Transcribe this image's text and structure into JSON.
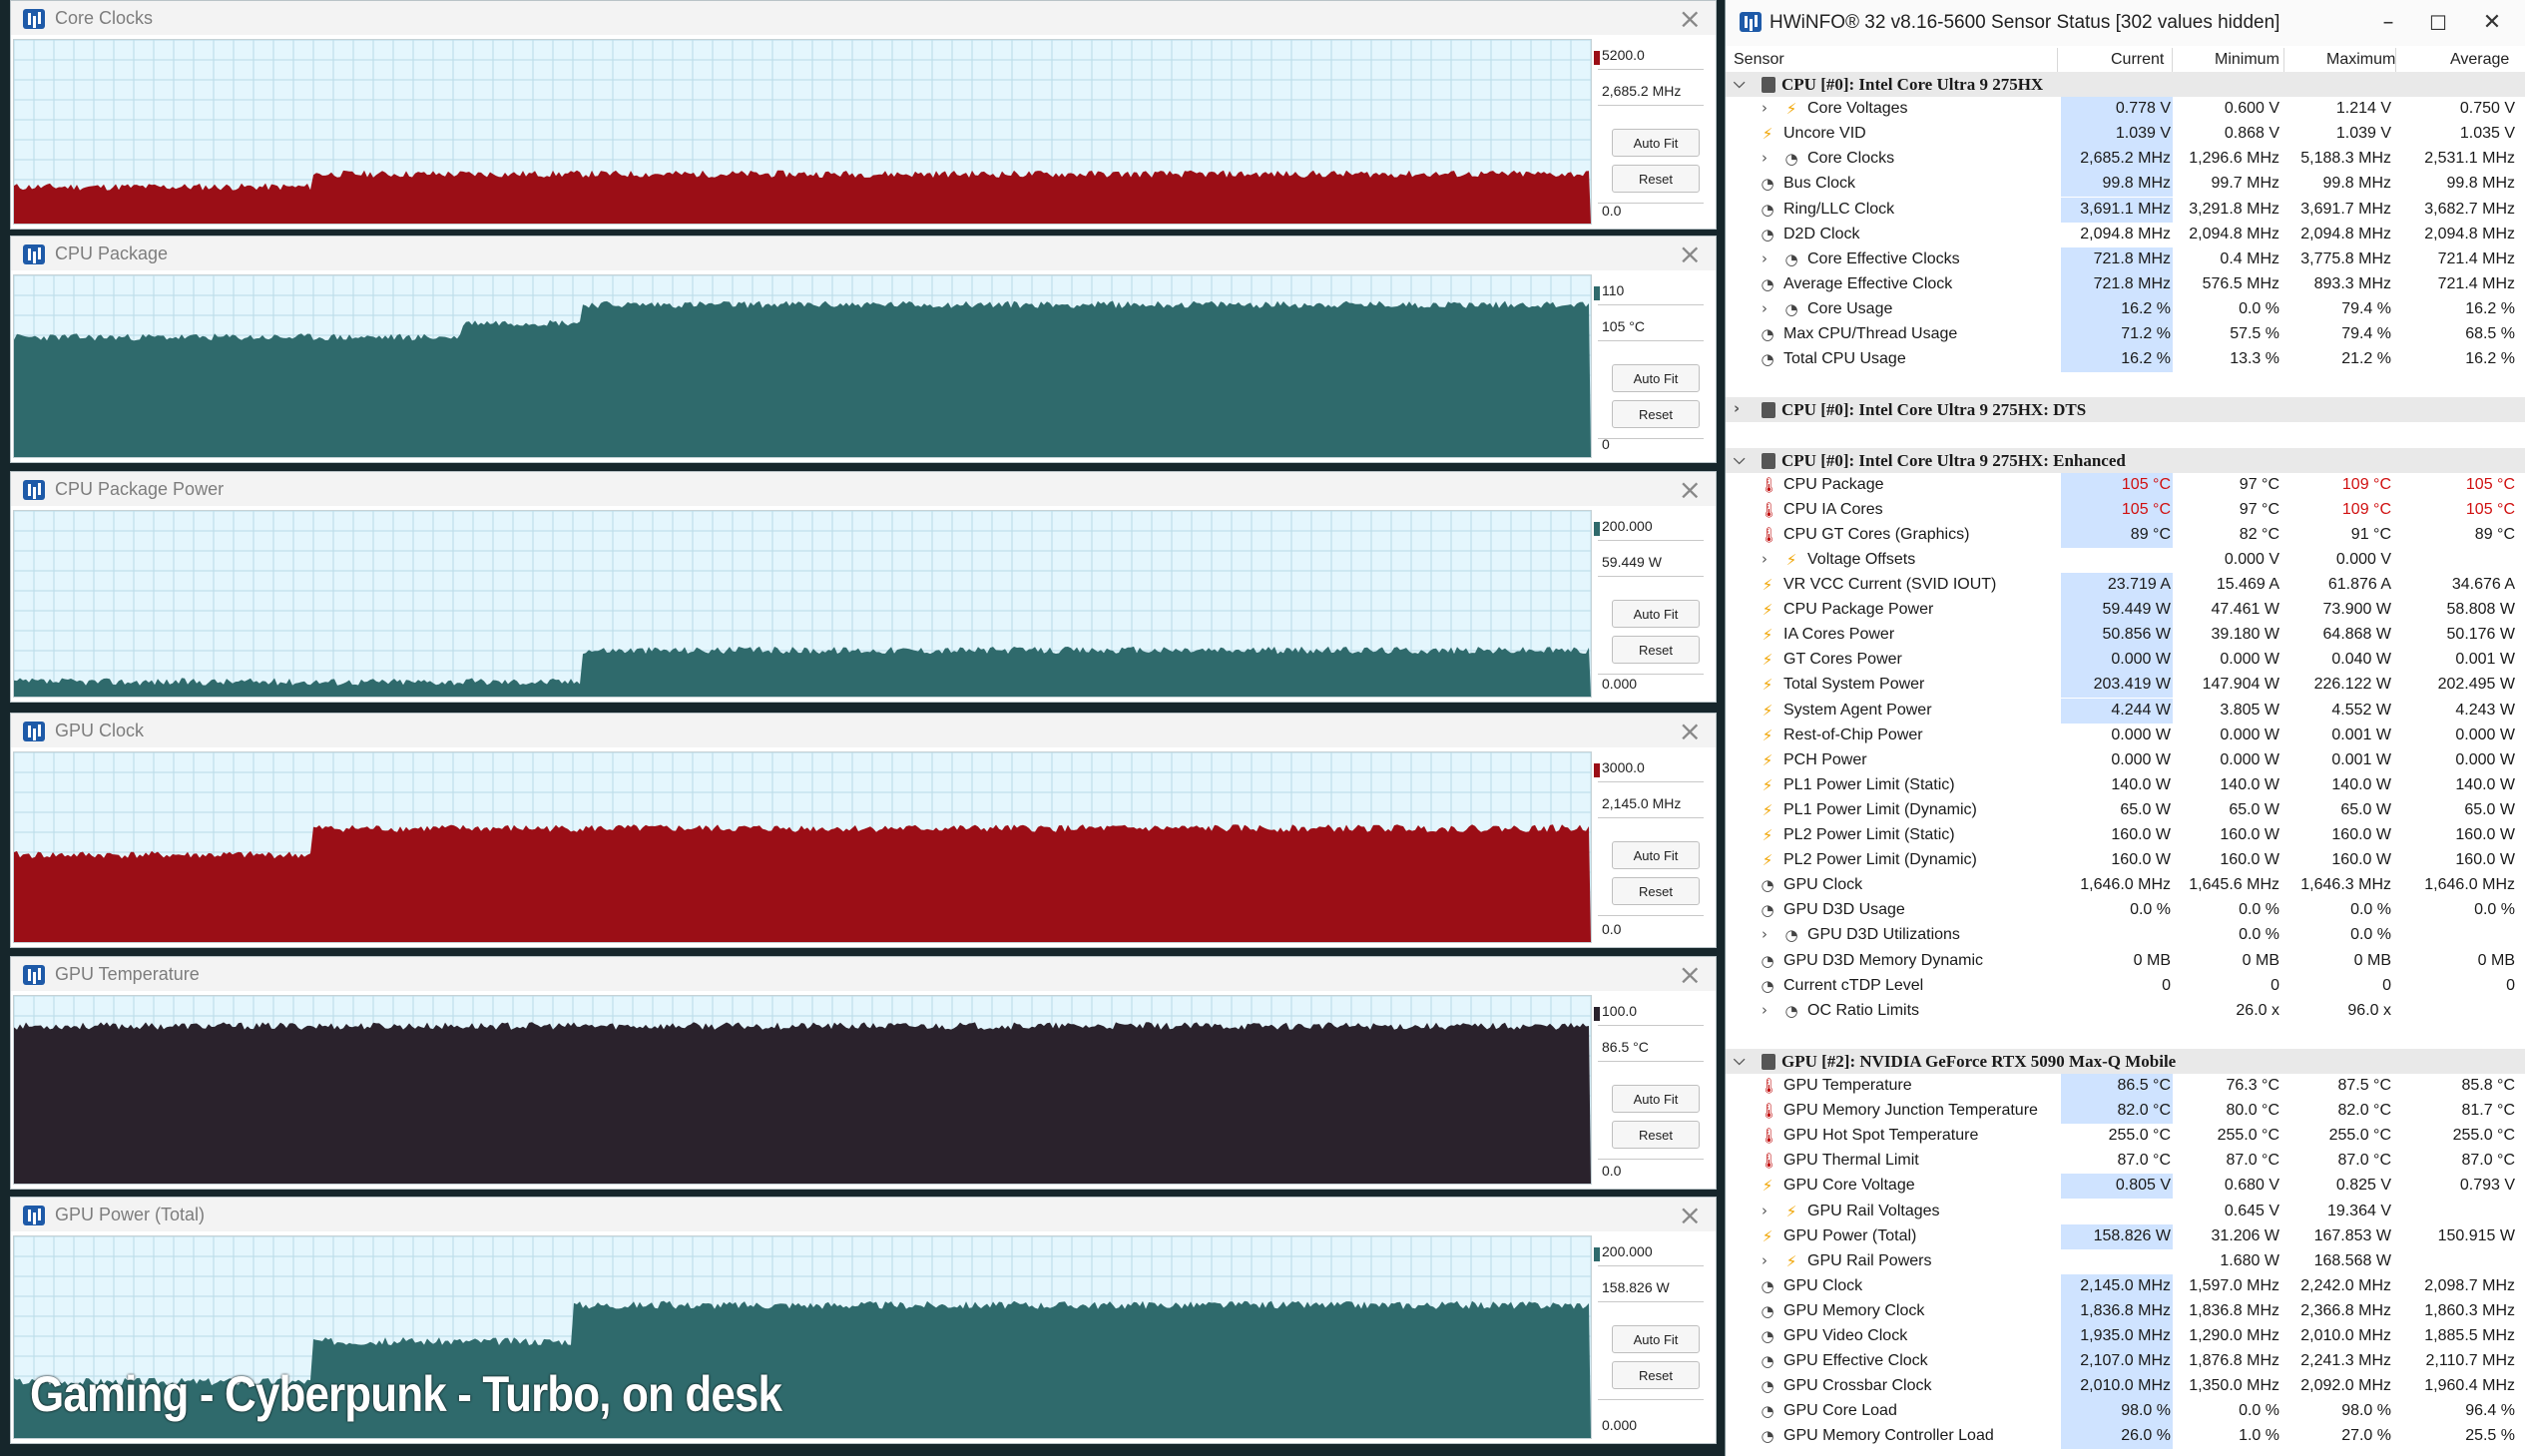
{
  "overlay_caption": "Gaming - Cyberpunk - Turbo, on desk",
  "graph_buttons": {
    "auto_fit": "Auto Fit",
    "reset": "Reset"
  },
  "graphs": [
    {
      "title": "Core Clocks",
      "max": "5200.0",
      "current": "2,685.2 MHz",
      "min": "0.0",
      "color": "#9b0e16",
      "colors": {
        "fill": "#9b0e16"
      }
    },
    {
      "title": "CPU Package",
      "max": "110",
      "current": "105 °C",
      "min": "0",
      "color": "#2f6a6c"
    },
    {
      "title": "CPU Package Power",
      "max": "200.000",
      "current": "59.449 W",
      "min": "0.000",
      "color": "#2f6a6c"
    },
    {
      "title": "GPU Clock",
      "max": "3000.0",
      "current": "2,145.0 MHz",
      "min": "0.0",
      "color": "#9b0e16"
    },
    {
      "title": "GPU Temperature",
      "max": "100.0",
      "current": "86.5 °C",
      "min": "0.0",
      "color": "#2a222c"
    },
    {
      "title": "GPU Power (Total)",
      "max": "200.000",
      "current": "158.826 W",
      "min": "0.000",
      "color": "#2f6a6c"
    }
  ],
  "sensor_window": {
    "title": "HWiNFO® 32 v8.16-5600 Sensor Status [302 values hidden]",
    "columns": {
      "sensor": "Sensor",
      "current": "Current",
      "minimum": "Minimum",
      "maximum": "Maximum",
      "average": "Average"
    },
    "rows": [
      {
        "type": "group",
        "name": "CPU [#0]: Intel Core Ultra 9 275HX",
        "expanded": true
      },
      {
        "type": "sub",
        "icon": "volt",
        "name": "Core Voltages",
        "cur": "0.778 V",
        "min": "0.600 V",
        "max": "1.214 V",
        "avg": "0.750 V",
        "hl": true
      },
      {
        "icon": "volt",
        "name": "Uncore VID",
        "cur": "1.039 V",
        "min": "0.868 V",
        "max": "1.039 V",
        "avg": "1.035 V",
        "hl": true
      },
      {
        "type": "sub",
        "icon": "clock",
        "name": "Core Clocks",
        "cur": "2,685.2 MHz",
        "min": "1,296.6 MHz",
        "max": "5,188.3 MHz",
        "avg": "2,531.1 MHz",
        "hl": true
      },
      {
        "icon": "clock",
        "name": "Bus Clock",
        "cur": "99.8 MHz",
        "min": "99.7 MHz",
        "max": "99.8 MHz",
        "avg": "99.8 MHz",
        "hl": true
      },
      {
        "icon": "clock",
        "name": "Ring/LLC Clock",
        "cur": "3,691.1 MHz",
        "min": "3,291.8 MHz",
        "max": "3,691.7 MHz",
        "avg": "3,682.7 MHz",
        "hl": true
      },
      {
        "icon": "clock",
        "name": "D2D Clock",
        "cur": "2,094.8 MHz",
        "min": "2,094.8 MHz",
        "max": "2,094.8 MHz",
        "avg": "2,094.8 MHz",
        "hl": false
      },
      {
        "type": "sub",
        "icon": "clock",
        "name": "Core Effective Clocks",
        "cur": "721.8 MHz",
        "min": "0.4 MHz",
        "max": "3,775.8 MHz",
        "avg": "721.4 MHz",
        "hl": true
      },
      {
        "icon": "clock",
        "name": "Average Effective Clock",
        "cur": "721.8 MHz",
        "min": "576.5 MHz",
        "max": "893.3 MHz",
        "avg": "721.4 MHz",
        "hl": true
      },
      {
        "type": "sub",
        "icon": "clock",
        "name": "Core Usage",
        "cur": "16.2 %",
        "min": "0.0 %",
        "max": "79.4 %",
        "avg": "16.2 %",
        "hl": true
      },
      {
        "icon": "clock",
        "name": "Max CPU/Thread Usage",
        "cur": "71.2 %",
        "min": "57.5 %",
        "max": "79.4 %",
        "avg": "68.5 %",
        "hl": true
      },
      {
        "icon": "clock",
        "name": "Total CPU Usage",
        "cur": "16.2 %",
        "min": "13.3 %",
        "max": "21.2 %",
        "avg": "16.2 %",
        "hl": true
      },
      {
        "type": "blank"
      },
      {
        "type": "group",
        "name": "CPU [#0]: Intel Core Ultra 9 275HX: DTS",
        "expanded": false
      },
      {
        "type": "blank"
      },
      {
        "type": "group",
        "name": "CPU [#0]: Intel Core Ultra 9 275HX: Enhanced",
        "expanded": true
      },
      {
        "icon": "temp",
        "name": "CPU Package",
        "cur": "105 °C",
        "min": "97 °C",
        "max": "109 °C",
        "avg": "105 °C",
        "hl": true,
        "red": true
      },
      {
        "icon": "temp",
        "name": "CPU IA Cores",
        "cur": "105 °C",
        "min": "97 °C",
        "max": "109 °C",
        "avg": "105 °C",
        "hl": true,
        "red": true
      },
      {
        "icon": "temp",
        "name": "CPU GT Cores (Graphics)",
        "cur": "89 °C",
        "min": "82 °C",
        "max": "91 °C",
        "avg": "89 °C",
        "hl": true
      },
      {
        "type": "sub",
        "icon": "volt",
        "name": "Voltage Offsets",
        "cur": "",
        "min": "0.000 V",
        "max": "0.000 V",
        "avg": "",
        "hl": false
      },
      {
        "icon": "volt",
        "name": "VR VCC Current (SVID IOUT)",
        "cur": "23.719 A",
        "min": "15.469 A",
        "max": "61.876 A",
        "avg": "34.676 A",
        "hl": true
      },
      {
        "icon": "volt",
        "name": "CPU Package Power",
        "cur": "59.449 W",
        "min": "47.461 W",
        "max": "73.900 W",
        "avg": "58.808 W",
        "hl": true
      },
      {
        "icon": "volt",
        "name": "IA Cores Power",
        "cur": "50.856 W",
        "min": "39.180 W",
        "max": "64.868 W",
        "avg": "50.176 W",
        "hl": true
      },
      {
        "icon": "volt",
        "name": "GT Cores Power",
        "cur": "0.000 W",
        "min": "0.000 W",
        "max": "0.040 W",
        "avg": "0.001 W",
        "hl": true
      },
      {
        "icon": "volt",
        "name": "Total System Power",
        "cur": "203.419 W",
        "min": "147.904 W",
        "max": "226.122 W",
        "avg": "202.495 W",
        "hl": true
      },
      {
        "icon": "volt",
        "name": "System Agent Power",
        "cur": "4.244 W",
        "min": "3.805 W",
        "max": "4.552 W",
        "avg": "4.243 W",
        "hl": true
      },
      {
        "icon": "volt",
        "name": "Rest-of-Chip Power",
        "cur": "0.000 W",
        "min": "0.000 W",
        "max": "0.001 W",
        "avg": "0.000 W",
        "hl": false
      },
      {
        "icon": "volt",
        "name": "PCH Power",
        "cur": "0.000 W",
        "min": "0.000 W",
        "max": "0.001 W",
        "avg": "0.000 W",
        "hl": false
      },
      {
        "icon": "volt",
        "name": "PL1 Power Limit (Static)",
        "cur": "140.0 W",
        "min": "140.0 W",
        "max": "140.0 W",
        "avg": "140.0 W",
        "hl": false
      },
      {
        "icon": "volt",
        "name": "PL1 Power Limit (Dynamic)",
        "cur": "65.0 W",
        "min": "65.0 W",
        "max": "65.0 W",
        "avg": "65.0 W",
        "hl": false
      },
      {
        "icon": "volt",
        "name": "PL2 Power Limit (Static)",
        "cur": "160.0 W",
        "min": "160.0 W",
        "max": "160.0 W",
        "avg": "160.0 W",
        "hl": false
      },
      {
        "icon": "volt",
        "name": "PL2 Power Limit (Dynamic)",
        "cur": "160.0 W",
        "min": "160.0 W",
        "max": "160.0 W",
        "avg": "160.0 W",
        "hl": false
      },
      {
        "icon": "clock",
        "name": "GPU Clock",
        "cur": "1,646.0 MHz",
        "min": "1,645.6 MHz",
        "max": "1,646.3 MHz",
        "avg": "1,646.0 MHz",
        "hl": false
      },
      {
        "icon": "clock",
        "name": "GPU D3D Usage",
        "cur": "0.0 %",
        "min": "0.0 %",
        "max": "0.0 %",
        "avg": "0.0 %",
        "hl": false
      },
      {
        "type": "sub",
        "icon": "clock",
        "name": "GPU D3D Utilizations",
        "cur": "",
        "min": "0.0 %",
        "max": "0.0 %",
        "avg": "",
        "hl": false
      },
      {
        "icon": "clock",
        "name": "GPU D3D Memory Dynamic",
        "cur": "0 MB",
        "min": "0 MB",
        "max": "0 MB",
        "avg": "0 MB",
        "hl": false
      },
      {
        "icon": "clock",
        "name": "Current cTDP Level",
        "cur": "0",
        "min": "0",
        "max": "0",
        "avg": "0",
        "hl": false
      },
      {
        "type": "sub",
        "icon": "clock",
        "name": "OC Ratio Limits",
        "cur": "",
        "min": "26.0 x",
        "max": "96.0 x",
        "avg": "",
        "hl": false
      },
      {
        "type": "blank"
      },
      {
        "type": "group",
        "name": "GPU [#2]: NVIDIA  GeForce RTX 5090 Max-Q Mobile",
        "expanded": true
      },
      {
        "icon": "temp",
        "name": "GPU Temperature",
        "cur": "86.5 °C",
        "min": "76.3 °C",
        "max": "87.5 °C",
        "avg": "85.8 °C",
        "hl": true
      },
      {
        "icon": "temp",
        "name": "GPU Memory Junction Temperature",
        "cur": "82.0 °C",
        "min": "80.0 °C",
        "max": "82.0 °C",
        "avg": "81.7 °C",
        "hl": true
      },
      {
        "icon": "temp",
        "name": "GPU Hot Spot Temperature",
        "cur": "255.0 °C",
        "min": "255.0 °C",
        "max": "255.0 °C",
        "avg": "255.0 °C",
        "hl": false
      },
      {
        "icon": "temp",
        "name": "GPU Thermal Limit",
        "cur": "87.0 °C",
        "min": "87.0 °C",
        "max": "87.0 °C",
        "avg": "87.0 °C",
        "hl": false
      },
      {
        "icon": "volt",
        "name": "GPU Core Voltage",
        "cur": "0.805 V",
        "min": "0.680 V",
        "max": "0.825 V",
        "avg": "0.793 V",
        "hl": true
      },
      {
        "type": "sub",
        "icon": "volt",
        "name": "GPU Rail Voltages",
        "cur": "",
        "min": "0.645 V",
        "max": "19.364 V",
        "avg": "",
        "hl": false
      },
      {
        "icon": "volt",
        "name": "GPU Power (Total)",
        "cur": "158.826 W",
        "min": "31.206 W",
        "max": "167.853 W",
        "avg": "150.915 W",
        "hl": true
      },
      {
        "type": "sub",
        "icon": "volt",
        "name": "GPU Rail Powers",
        "cur": "",
        "min": "1.680 W",
        "max": "168.568 W",
        "avg": "",
        "hl": false
      },
      {
        "icon": "clock",
        "name": "GPU Clock",
        "cur": "2,145.0 MHz",
        "min": "1,597.0 MHz",
        "max": "2,242.0 MHz",
        "avg": "2,098.7 MHz",
        "hl": true
      },
      {
        "icon": "clock",
        "name": "GPU Memory Clock",
        "cur": "1,836.8 MHz",
        "min": "1,836.8 MHz",
        "max": "2,366.8 MHz",
        "avg": "1,860.3 MHz",
        "hl": true
      },
      {
        "icon": "clock",
        "name": "GPU Video Clock",
        "cur": "1,935.0 MHz",
        "min": "1,290.0 MHz",
        "max": "2,010.0 MHz",
        "avg": "1,885.5 MHz",
        "hl": true
      },
      {
        "icon": "clock",
        "name": "GPU Effective Clock",
        "cur": "2,107.0 MHz",
        "min": "1,876.8 MHz",
        "max": "2,241.3 MHz",
        "avg": "2,110.7 MHz",
        "hl": true
      },
      {
        "icon": "clock",
        "name": "GPU Crossbar Clock",
        "cur": "2,010.0 MHz",
        "min": "1,350.0 MHz",
        "max": "2,092.0 MHz",
        "avg": "1,960.4 MHz",
        "hl": true
      },
      {
        "icon": "clock",
        "name": "GPU Core Load",
        "cur": "98.0 %",
        "min": "0.0 %",
        "max": "98.0 %",
        "avg": "96.4 %",
        "hl": true
      },
      {
        "icon": "clock",
        "name": "GPU Memory Controller Load",
        "cur": "26.0 %",
        "min": "1.0 %",
        "max": "27.0 %",
        "avg": "25.5 %",
        "hl": true
      }
    ]
  }
}
